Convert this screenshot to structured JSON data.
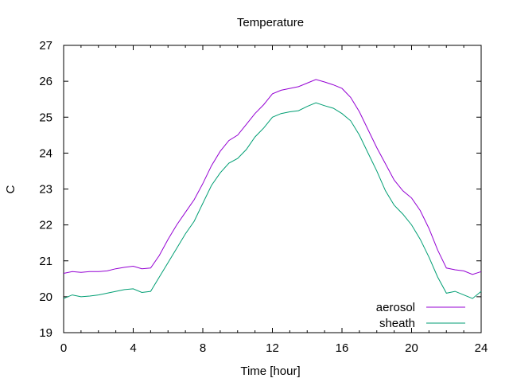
{
  "chart_data": {
    "type": "line",
    "title": "Temperature",
    "xlabel": "Time [hour]",
    "ylabel": "C",
    "xlim": [
      0,
      24
    ],
    "ylim": [
      19,
      27
    ],
    "x_ticks": [
      0,
      4,
      8,
      12,
      16,
      20,
      24
    ],
    "y_ticks": [
      19,
      20,
      21,
      22,
      23,
      24,
      25,
      26,
      27
    ],
    "x_tick_labels": [
      "0",
      "4",
      "8",
      "12",
      "16",
      "20",
      "24"
    ],
    "y_tick_labels": [
      "19",
      "20",
      "21",
      "22",
      "23",
      "24",
      "25",
      "26",
      "27"
    ],
    "grid": false,
    "legend_position": "bottom-right",
    "series": [
      {
        "name": "aerosol",
        "color": "#9400d3",
        "points": [
          [
            0,
            20.65
          ],
          [
            0.5,
            20.7
          ],
          [
            1,
            20.68
          ],
          [
            1.5,
            20.7
          ],
          [
            2,
            20.7
          ],
          [
            2.5,
            20.72
          ],
          [
            3,
            20.78
          ],
          [
            3.5,
            20.82
          ],
          [
            4,
            20.85
          ],
          [
            4.5,
            20.78
          ],
          [
            5,
            20.8
          ],
          [
            5.5,
            21.15
          ],
          [
            6,
            21.6
          ],
          [
            6.5,
            22.0
          ],
          [
            7,
            22.35
          ],
          [
            7.5,
            22.7
          ],
          [
            8,
            23.15
          ],
          [
            8.5,
            23.65
          ],
          [
            9,
            24.05
          ],
          [
            9.5,
            24.35
          ],
          [
            10,
            24.5
          ],
          [
            10.5,
            24.8
          ],
          [
            11,
            25.1
          ],
          [
            11.5,
            25.35
          ],
          [
            12,
            25.65
          ],
          [
            12.5,
            25.75
          ],
          [
            13,
            25.8
          ],
          [
            13.5,
            25.85
          ],
          [
            14,
            25.95
          ],
          [
            14.5,
            26.05
          ],
          [
            15,
            25.98
          ],
          [
            15.5,
            25.9
          ],
          [
            16,
            25.8
          ],
          [
            16.5,
            25.55
          ],
          [
            17,
            25.15
          ],
          [
            17.5,
            24.65
          ],
          [
            18,
            24.15
          ],
          [
            18.5,
            23.7
          ],
          [
            19,
            23.25
          ],
          [
            19.5,
            22.95
          ],
          [
            20,
            22.75
          ],
          [
            20.5,
            22.4
          ],
          [
            21,
            21.9
          ],
          [
            21.5,
            21.3
          ],
          [
            22,
            20.8
          ],
          [
            22.5,
            20.75
          ],
          [
            23,
            20.72
          ],
          [
            23.5,
            20.62
          ],
          [
            24,
            20.7
          ]
        ]
      },
      {
        "name": "sheath",
        "color": "#009e73",
        "points": [
          [
            0,
            19.95
          ],
          [
            0.5,
            20.05
          ],
          [
            1,
            20.0
          ],
          [
            1.5,
            20.02
          ],
          [
            2,
            20.05
          ],
          [
            2.5,
            20.1
          ],
          [
            3,
            20.15
          ],
          [
            3.5,
            20.2
          ],
          [
            4,
            20.22
          ],
          [
            4.5,
            20.12
          ],
          [
            5,
            20.15
          ],
          [
            5.5,
            20.55
          ],
          [
            6,
            20.95
          ],
          [
            6.5,
            21.35
          ],
          [
            7,
            21.75
          ],
          [
            7.5,
            22.1
          ],
          [
            8,
            22.6
          ],
          [
            8.5,
            23.1
          ],
          [
            9,
            23.45
          ],
          [
            9.5,
            23.72
          ],
          [
            10,
            23.85
          ],
          [
            10.5,
            24.1
          ],
          [
            11,
            24.45
          ],
          [
            11.5,
            24.7
          ],
          [
            12,
            25.0
          ],
          [
            12.5,
            25.1
          ],
          [
            13,
            25.15
          ],
          [
            13.5,
            25.18
          ],
          [
            14,
            25.3
          ],
          [
            14.5,
            25.4
          ],
          [
            15,
            25.32
          ],
          [
            15.5,
            25.25
          ],
          [
            16,
            25.1
          ],
          [
            16.5,
            24.9
          ],
          [
            17,
            24.5
          ],
          [
            17.5,
            24.0
          ],
          [
            18,
            23.5
          ],
          [
            18.5,
            22.95
          ],
          [
            19,
            22.55
          ],
          [
            19.5,
            22.3
          ],
          [
            20,
            22.0
          ],
          [
            20.5,
            21.6
          ],
          [
            21,
            21.1
          ],
          [
            21.5,
            20.55
          ],
          [
            22,
            20.1
          ],
          [
            22.5,
            20.15
          ],
          [
            23,
            20.05
          ],
          [
            23.5,
            19.95
          ],
          [
            24,
            20.15
          ]
        ]
      }
    ]
  }
}
